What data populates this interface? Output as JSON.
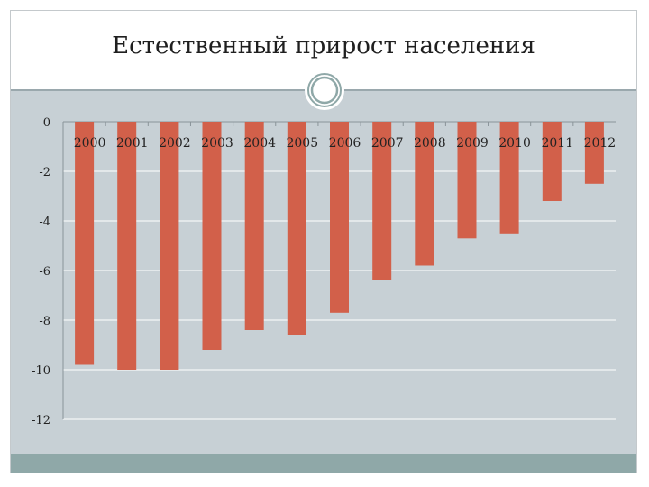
{
  "slide": {
    "title": "Естественный прирост населения"
  },
  "colors": {
    "bar": "#d2604a",
    "plot_background": "#c7d0d5",
    "bottom_band": "#8fa8a8",
    "ornament": "#8fa8a8"
  },
  "icons": {
    "ornament": "circle-ornament-icon"
  },
  "chart_data": {
    "type": "bar",
    "title": "Естественный прирост населения",
    "categories": [
      "2000",
      "2001",
      "2002",
      "2003",
      "2004",
      "2005",
      "2006",
      "2007",
      "2008",
      "2009",
      "2010",
      "2011",
      "2012"
    ],
    "values": [
      -9.8,
      -10.0,
      -10.0,
      -9.2,
      -8.4,
      -8.6,
      -7.7,
      -6.4,
      -5.8,
      -4.7,
      -4.5,
      -3.2,
      -2.5
    ],
    "ylim": [
      -12,
      0
    ],
    "yticks": [
      0,
      -2,
      -4,
      -6,
      -8,
      -10,
      -12
    ],
    "ytick_labels": [
      "0",
      "-2",
      "-4",
      "-6",
      "-8",
      "-10",
      "-12"
    ],
    "grid": true,
    "xlabel": "",
    "ylabel": "",
    "category_label_position": "top"
  }
}
